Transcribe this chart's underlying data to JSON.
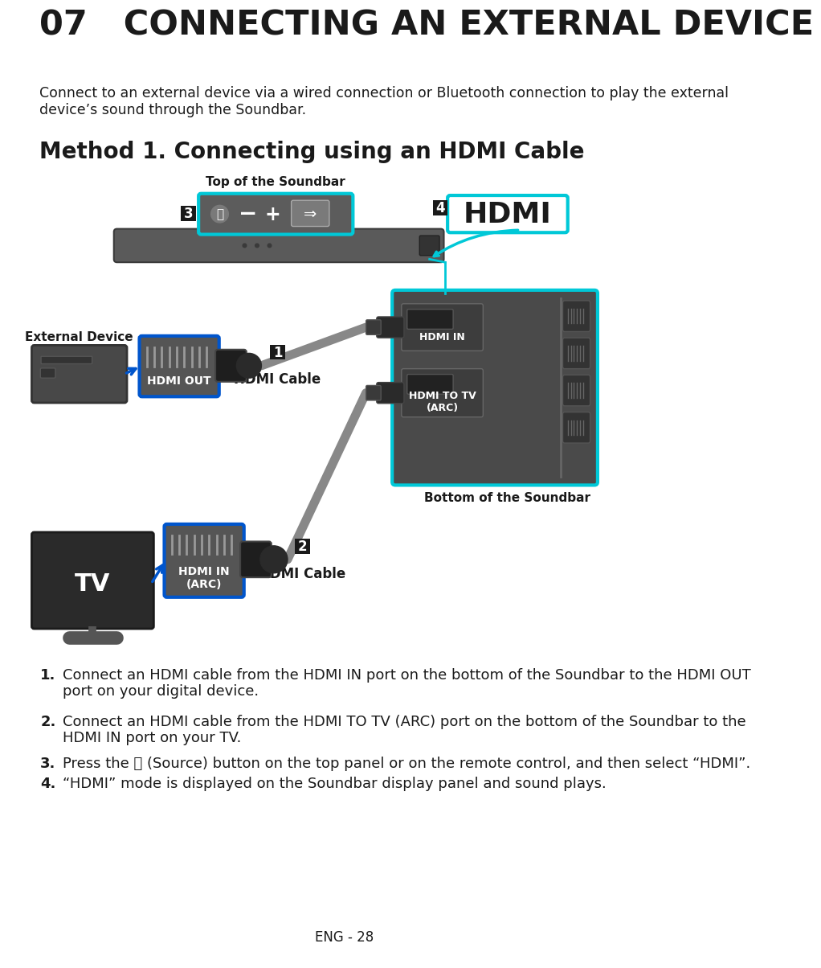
{
  "title": "07   CONNECTING AN EXTERNAL DEVICE",
  "subtitle_line1": "Connect to an external device via a wired connection or Bluetooth connection to play the external",
  "subtitle_line2": "device’s sound through the Soundbar.",
  "section_title": "Method 1. Connecting using an HDMI Cable",
  "top_label": "Top of the Soundbar",
  "bottom_label": "Bottom of the Soundbar",
  "ext_device_label": "External Device",
  "hdmi_out_label": "HDMI OUT",
  "hdmi_in_label": "HDMI IN",
  "hdmi_to_tv_label": "HDMI TO TV\n(ARC)",
  "hdmi_cable_label": "HDMI Cable",
  "hdmi_in_arc_label": "HDMI IN\n(ARC)",
  "tv_label": "TV",
  "hdmi_display_label": "HDMI",
  "footer": "ENG - 28",
  "bg_color": "#ffffff",
  "text_color": "#1a1a1a",
  "cyan_color": "#00c8d7",
  "blue_color": "#0055cc",
  "badge_color": "#1a1a1a",
  "panel_color": "#4a4a4a",
  "soundbar_top_color": "#5c5c5c",
  "soundbar_body_color": "#5a5a5a",
  "port_box_color": "#555555",
  "port_slot_color": "#222222",
  "connector_color": "#2a2a2a",
  "cable_color": "#888888",
  "strip_color": "#333333",
  "tv_color": "#2a2a2a",
  "ext_device_color": "#484848"
}
